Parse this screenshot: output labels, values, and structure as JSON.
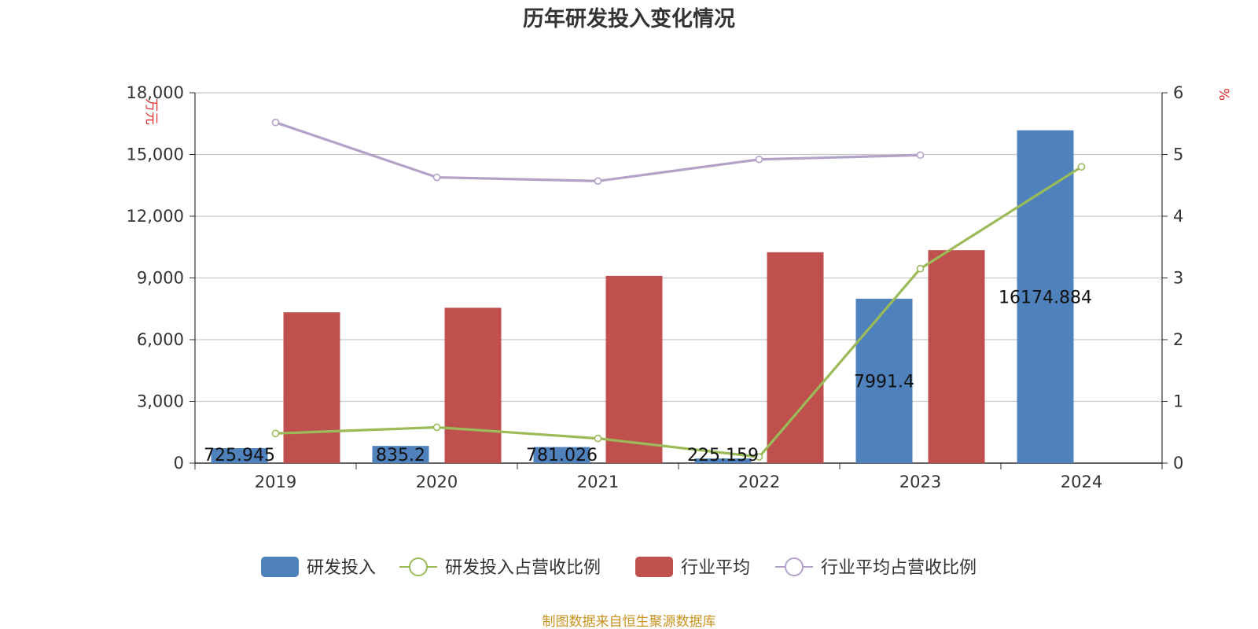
{
  "chart_data": {
    "type": "bar",
    "title": "历年研发投入变化情况",
    "categories": [
      "2019",
      "2020",
      "2021",
      "2022",
      "2023",
      "2024"
    ],
    "y_left": {
      "unit": "万元",
      "ylim": [
        0,
        18000
      ],
      "ticks": [
        0,
        3000,
        6000,
        9000,
        12000,
        15000,
        18000
      ],
      "tick_labels": [
        "0",
        "3,000",
        "6,000",
        "9,000",
        "12,000",
        "15,000",
        "18,000"
      ]
    },
    "y_right": {
      "unit": "%",
      "ylim": [
        0,
        6
      ],
      "ticks": [
        0,
        1,
        2,
        3,
        4,
        5,
        6
      ],
      "tick_labels": [
        "0",
        "1",
        "2",
        "3",
        "4",
        "5",
        "6"
      ]
    },
    "grid": true,
    "legend_position": "bottom",
    "series": [
      {
        "name": "研发投入",
        "kind": "bar",
        "axis": "left",
        "color": "#4f81bd",
        "values": [
          725.945,
          835.2,
          781.026,
          225.159,
          7991.4,
          16174.884
        ],
        "labels": [
          "725.945",
          "835.2",
          "781.026",
          "225.159",
          "7991.4",
          "16174.884"
        ]
      },
      {
        "name": "研发投入占营收比例",
        "kind": "line",
        "axis": "right",
        "color": "#9bbb59",
        "values": [
          0.48,
          0.58,
          0.4,
          0.1,
          3.15,
          4.8
        ]
      },
      {
        "name": "行业平均",
        "kind": "bar",
        "axis": "left",
        "color": "#c0504d",
        "values": [
          7330,
          7550,
          9100,
          10250,
          10350,
          null
        ]
      },
      {
        "name": "行业平均占营收比例",
        "kind": "line",
        "axis": "right",
        "color": "#b3a2c7",
        "values": [
          5.52,
          4.63,
          4.57,
          4.92,
          4.99,
          null
        ]
      }
    ],
    "source": "制图数据来自恒生聚源数据库"
  }
}
